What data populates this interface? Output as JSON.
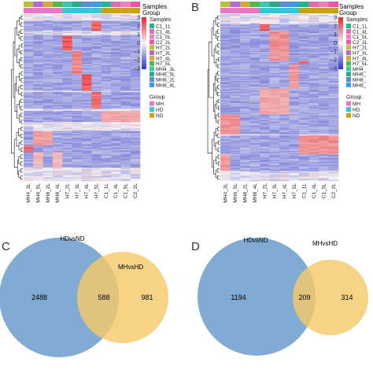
{
  "panels": {
    "A": {
      "letter": "",
      "type": "heatmap",
      "track_labels": [
        "Samples",
        "Group"
      ],
      "columns": [
        "MH4_3L",
        "MH6_5L",
        "MH8_2L",
        "MH8_4L",
        "H7_2L",
        "H7_3L",
        "H7_4L",
        "H7_5L",
        "C1_1L",
        "C1_4L",
        "C1_5L",
        "C2_2L"
      ],
      "column_groups": [
        "MH",
        "MH",
        "MH",
        "MH",
        "HD",
        "HD",
        "HD",
        "HD",
        "ND",
        "ND",
        "ND",
        "ND"
      ]
    },
    "B": {
      "letter": "B",
      "type": "heatmap",
      "track_labels": [
        "Samples",
        "Group"
      ],
      "columns": [
        "MH4_3L",
        "MH6_5L",
        "MH8_2L",
        "MH8_4L",
        "H7_2L",
        "H7_3L",
        "H7_4L",
        "H7_5L",
        "C1_1L",
        "C1_4L",
        "C1_5L",
        "C2_2L"
      ],
      "column_groups": [
        "MH",
        "MH",
        "MH",
        "MH",
        "HD",
        "HD",
        "HD",
        "HD",
        "ND",
        "ND",
        "ND",
        "ND"
      ]
    },
    "C": {
      "letter": "C",
      "type": "venn",
      "sets": [
        "HDvsND",
        "MHvsHD"
      ],
      "only_first": "2488",
      "overlap": "588",
      "only_second": "981"
    },
    "D": {
      "letter": "D",
      "type": "venn",
      "sets": [
        "HDvsND",
        "MHvsHD"
      ],
      "only_first": "1194",
      "overlap": "209",
      "only_second": "314"
    }
  },
  "legend": {
    "scale_ticks": [
      "3",
      "2",
      "1",
      "0",
      "−1",
      "−2",
      "−3"
    ],
    "samples_title": "Samples",
    "samples_A": [
      "C1_1L",
      "C1_4L",
      "C1_5L",
      "C2_2L",
      "H7_2L",
      "H7_3L",
      "H7_4L",
      "H7_5L",
      "MH4_3L",
      "MH6_5L",
      "MH8_2L",
      "MH8_4L"
    ],
    "samples_B": [
      "C1_1L",
      "C1_4L",
      "C1_5L",
      "C2_2L",
      "H7_2L",
      "H7_3L",
      "H7_4L",
      "H7_5L",
      "MH4_",
      "MH6_",
      "MH8_",
      "MH8_"
    ],
    "group_title": "Group",
    "groups": [
      "MH",
      "HD",
      "ND"
    ]
  },
  "colors": {
    "heat_low": "#2e36c8",
    "heat_mid": "#f4f4f4",
    "heat_high": "#e8252a",
    "venn_hdvsnd": "#7ba6d2",
    "venn_mhvshd": "#f5c96a",
    "venn_overlap": "#b99a72",
    "group_MH": "#e878c4",
    "group_HD": "#31c6d8",
    "group_ND": "#c8a216",
    "samples": [
      "#b8c234",
      "#b866d8",
      "#d6a83a",
      "#4fb84e",
      "#3ec4b0",
      "#2fa88a",
      "#5b8ad6",
      "#3a9be0",
      "#1fb88e",
      "#e26bb6",
      "#f07fbe",
      "#e858a8"
    ]
  },
  "chart_data": [
    {
      "type": "heatmap",
      "panel": "A",
      "columns": [
        "MH4_3L",
        "MH6_5L",
        "MH8_2L",
        "MH8_4L",
        "H7_2L",
        "H7_3L",
        "H7_4L",
        "H7_5L",
        "C1_1L",
        "C1_4L",
        "C1_5L",
        "C2_2L"
      ],
      "group_of_column": [
        "MH",
        "MH",
        "MH",
        "MH",
        "HD",
        "HD",
        "HD",
        "HD",
        "ND",
        "ND",
        "ND",
        "ND"
      ],
      "scale": [
        -3,
        3
      ],
      "blocks": [
        {
          "rows": [
            0.04,
            0.1
          ],
          "columns": [
            "H7_5L"
          ],
          "z": 2.5
        },
        {
          "rows": [
            0.13,
            0.35
          ],
          "columns": [
            "H7_2L"
          ],
          "z": 2.5
        },
        {
          "rows": [
            0.22,
            0.38
          ],
          "columns": [
            "H7_3L"
          ],
          "z": 1.8
        },
        {
          "rows": [
            0.36,
            0.46
          ],
          "columns": [
            "H7_4L"
          ],
          "z": 2.4
        },
        {
          "rows": [
            0.47,
            0.57
          ],
          "columns": [
            "H7_5L"
          ],
          "z": 2.2
        },
        {
          "rows": [
            0.58,
            0.65
          ],
          "columns": [
            "C1_1L",
            "C1_4L",
            "C1_5L",
            "C2_2L"
          ],
          "z": 1.2
        },
        {
          "rows": [
            0.7,
            0.79
          ],
          "columns": [
            "MH6_5L",
            "MH8_2L"
          ],
          "z": 1.4
        },
        {
          "rows": [
            0.79,
            0.9
          ],
          "columns": [
            "MH4_3L"
          ],
          "z": 2.3
        },
        {
          "rows": [
            0.83,
            0.92
          ],
          "columns": [
            "MH6_5L",
            "MH8_4L"
          ],
          "z": 1.0
        }
      ]
    },
    {
      "type": "heatmap",
      "panel": "B",
      "columns": [
        "MH4_3L",
        "MH6_5L",
        "MH8_2L",
        "MH8_4L",
        "H7_2L",
        "H7_3L",
        "H7_4L",
        "H7_5L",
        "C1_1L",
        "C1_4L",
        "C1_5L",
        "C2_2L"
      ],
      "group_of_column": [
        "MH",
        "MH",
        "MH",
        "MH",
        "HD",
        "HD",
        "HD",
        "HD",
        "ND",
        "ND",
        "ND",
        "ND"
      ],
      "scale": [
        -3,
        3
      ],
      "blocks": [
        {
          "rows": [
            0.06,
            0.25
          ],
          "columns": [
            "H7_2L"
          ],
          "z": 2.4
        },
        {
          "rows": [
            0.1,
            0.3
          ],
          "columns": [
            "H7_3L",
            "H7_4L"
          ],
          "z": 1.6
        },
        {
          "rows": [
            0.28,
            0.4
          ],
          "columns": [
            "C1_1L"
          ],
          "z": 2.4
        },
        {
          "rows": [
            0.3,
            0.45
          ],
          "columns": [
            "H7_5L"
          ],
          "z": 1.5
        },
        {
          "rows": [
            0.45,
            0.65
          ],
          "columns": [
            "H7_2L",
            "H7_3L",
            "H7_4L"
          ],
          "z": 1.2
        },
        {
          "rows": [
            0.6,
            0.72
          ],
          "columns": [
            "MH4_3L",
            "MH6_5L"
          ],
          "z": 1.6
        },
        {
          "rows": [
            0.73,
            0.92
          ],
          "columns": [
            "C1_1L",
            "C1_4L",
            "C1_5L",
            "C2_2L"
          ],
          "z": 1.6
        },
        {
          "rows": [
            0.84,
            0.94
          ],
          "columns": [
            "MH4_3L"
          ],
          "z": 1.4
        }
      ]
    },
    {
      "type": "venn",
      "panel": "C",
      "sets": [
        "HDvsND",
        "MHvsHD"
      ],
      "counts": {
        "HDvsND_only": 2488,
        "both": 588,
        "MHvsHD_only": 981
      }
    },
    {
      "type": "venn",
      "panel": "D",
      "sets": [
        "HDvsND",
        "MHvsHD"
      ],
      "counts": {
        "HDvsND_only": 1194,
        "both": 209,
        "MHvsHD_only": 314
      }
    }
  ]
}
